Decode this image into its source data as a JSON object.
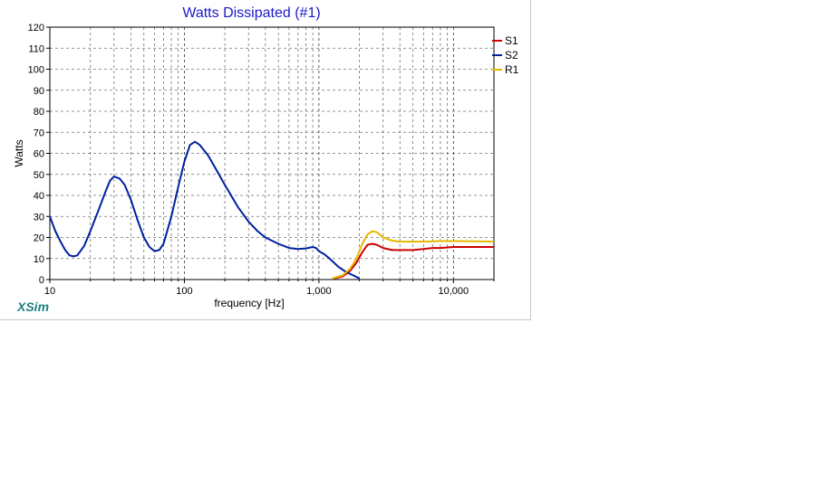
{
  "chart_data": {
    "type": "line",
    "title": "Watts Dissipated (#1)",
    "xlabel": "frequency [Hz]",
    "ylabel": "Watts",
    "xscale": "log",
    "xlim": [
      10,
      20000
    ],
    "ylim": [
      0,
      120
    ],
    "grid": true,
    "legend_position": "top-right",
    "x_tick_labels": [
      "10",
      "100",
      "1,000",
      "10,000"
    ],
    "y_tick_labels": [
      "0",
      "10",
      "20",
      "30",
      "40",
      "50",
      "60",
      "70",
      "80",
      "90",
      "100",
      "110",
      "120"
    ],
    "series": [
      {
        "name": "S1",
        "color": "#cc0000",
        "points": [
          [
            1300,
            0.5
          ],
          [
            1500,
            1.5
          ],
          [
            1700,
            4
          ],
          [
            1900,
            8
          ],
          [
            2100,
            13
          ],
          [
            2300,
            16.5
          ],
          [
            2500,
            17
          ],
          [
            2700,
            16.5
          ],
          [
            3000,
            15
          ],
          [
            3500,
            14
          ],
          [
            4000,
            14
          ],
          [
            5000,
            14
          ],
          [
            6000,
            14.5
          ],
          [
            7000,
            15
          ],
          [
            8000,
            15
          ],
          [
            10000,
            15.5
          ],
          [
            12000,
            15.5
          ],
          [
            15000,
            15.5
          ],
          [
            20000,
            15.5
          ]
        ]
      },
      {
        "name": "S2",
        "color": "#00209f",
        "points": [
          [
            10,
            30
          ],
          [
            11,
            23
          ],
          [
            12,
            18
          ],
          [
            13,
            14
          ],
          [
            14,
            11.5
          ],
          [
            15,
            11
          ],
          [
            16,
            11.5
          ],
          [
            18,
            16
          ],
          [
            20,
            23
          ],
          [
            23,
            33
          ],
          [
            26,
            42
          ],
          [
            28,
            47
          ],
          [
            30,
            49
          ],
          [
            33,
            48
          ],
          [
            36,
            45
          ],
          [
            40,
            38
          ],
          [
            45,
            28
          ],
          [
            50,
            20
          ],
          [
            55,
            15.5
          ],
          [
            60,
            13.5
          ],
          [
            65,
            14
          ],
          [
            70,
            17
          ],
          [
            80,
            30
          ],
          [
            90,
            44
          ],
          [
            100,
            56
          ],
          [
            110,
            64
          ],
          [
            120,
            65.5
          ],
          [
            130,
            64
          ],
          [
            150,
            59
          ],
          [
            170,
            53
          ],
          [
            200,
            45
          ],
          [
            250,
            34.5
          ],
          [
            300,
            27.5
          ],
          [
            350,
            23
          ],
          [
            400,
            20
          ],
          [
            500,
            17
          ],
          [
            600,
            15
          ],
          [
            700,
            14.5
          ],
          [
            800,
            14.8
          ],
          [
            900,
            15.5
          ],
          [
            950,
            15
          ],
          [
            1000,
            13.5
          ],
          [
            1100,
            12
          ],
          [
            1200,
            10
          ],
          [
            1400,
            6
          ],
          [
            1600,
            3.5
          ],
          [
            1800,
            2
          ],
          [
            2000,
            0.5
          ]
        ]
      },
      {
        "name": "R1",
        "color": "#e6b800",
        "points": [
          [
            1250,
            0.5
          ],
          [
            1500,
            2
          ],
          [
            1700,
            5
          ],
          [
            1900,
            10
          ],
          [
            2100,
            17
          ],
          [
            2300,
            21.5
          ],
          [
            2500,
            23
          ],
          [
            2700,
            22.5
          ],
          [
            3000,
            20
          ],
          [
            3500,
            18.5
          ],
          [
            4000,
            18
          ],
          [
            5000,
            18
          ],
          [
            6000,
            18
          ],
          [
            7000,
            18.2
          ],
          [
            8000,
            18.3
          ],
          [
            10000,
            18.3
          ],
          [
            15000,
            18.2
          ],
          [
            20000,
            18
          ]
        ]
      }
    ]
  },
  "brand": "XSim"
}
